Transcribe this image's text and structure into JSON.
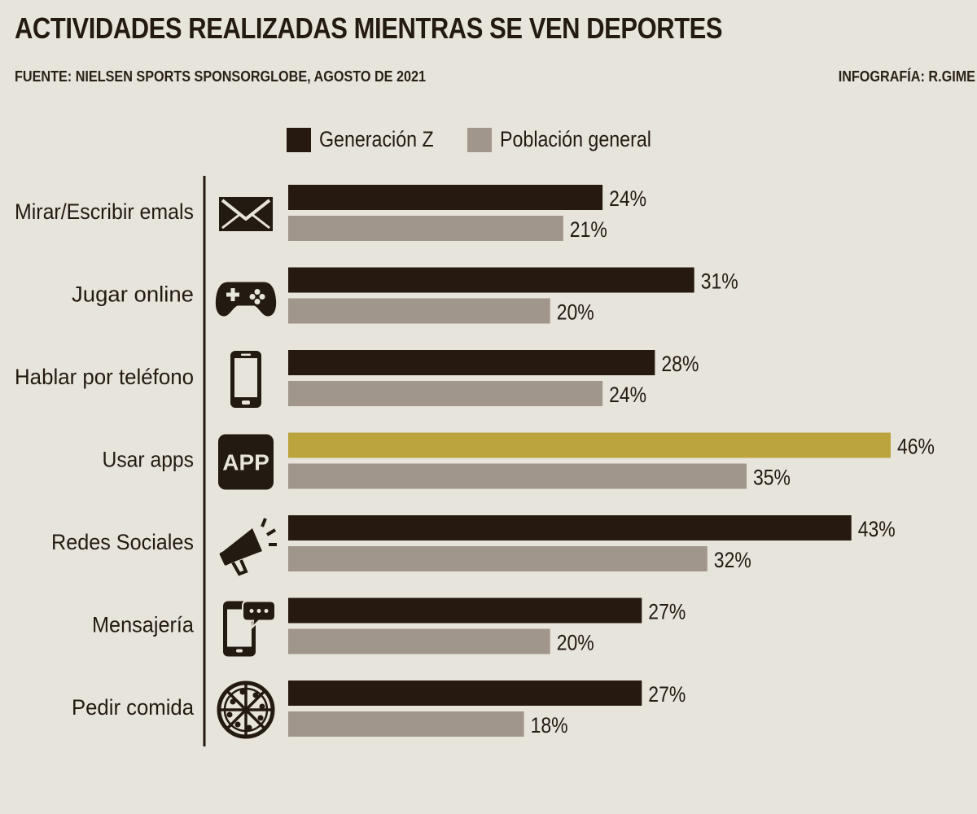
{
  "header": {
    "title": "ACTIVIDADES REALIZADAS MIENTRAS SE VEN DEPORTES",
    "source": "FUENTE: NIELSEN SPORTS SPONSORGLOBE, AGOSTO DE 2021",
    "credit": "INFOGRAFÍA: R.GIME"
  },
  "colors": {
    "background": "#e7e4dc",
    "gen_z": "#261a10",
    "general": "#a1968b",
    "highlight": "#bba33e",
    "icon": "#231a12"
  },
  "chart_data": {
    "type": "bar",
    "orientation": "horizontal",
    "categories": [
      "Mirar/Escribir emals",
      "Jugar online",
      "Hablar por teléfono",
      "Usar apps",
      "Redes Sociales",
      "Mensajería",
      "Pedir comida"
    ],
    "icons": [
      "envelope-icon",
      "gamepad-icon",
      "smartphone-icon",
      "app-icon",
      "megaphone-icon",
      "chat-phone-icon",
      "pizza-icon"
    ],
    "series": [
      {
        "name": "Generación Z",
        "values": [
          24,
          31,
          28,
          46,
          43,
          27,
          27
        ]
      },
      {
        "name": "Población general",
        "values": [
          21,
          20,
          24,
          35,
          32,
          20,
          18
        ]
      }
    ],
    "highlight": {
      "series": 0,
      "category": 3
    },
    "value_suffix": "%",
    "xlim": [
      0,
      46
    ],
    "grid": false,
    "legend_position": "top"
  }
}
